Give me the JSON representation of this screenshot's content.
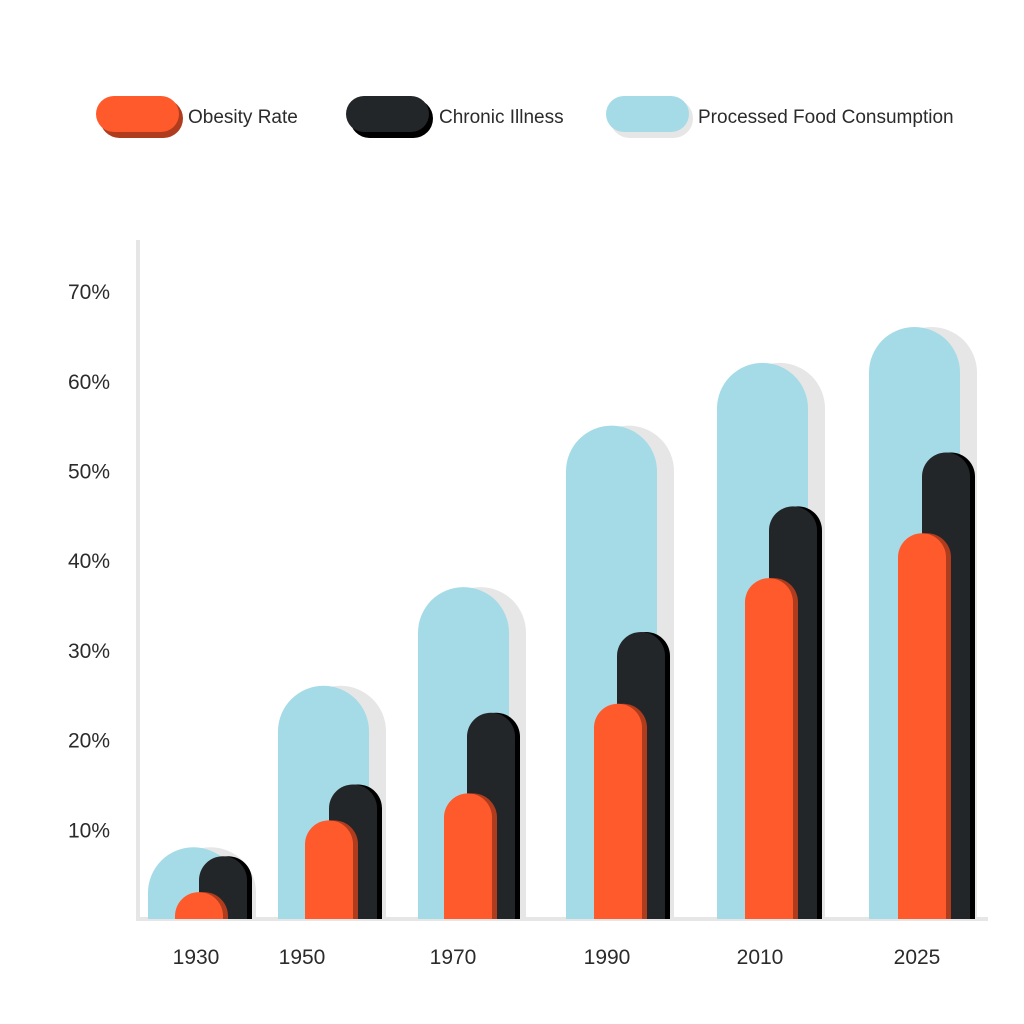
{
  "chart_data": {
    "type": "bar",
    "title": "",
    "xlabel": "",
    "ylabel": "",
    "categories": [
      "1930",
      "1950",
      "1970",
      "1990",
      "2010",
      "2025"
    ],
    "series": [
      {
        "name": "Obesity Rate",
        "values": [
          3,
          11,
          14,
          24,
          38,
          43
        ]
      },
      {
        "name": "Chronic Illness",
        "values": [
          7,
          15,
          23,
          32,
          46,
          52
        ]
      },
      {
        "name": "Processed Food Consumption",
        "values": [
          8,
          26,
          37,
          55,
          62,
          66
        ]
      }
    ],
    "ylim": [
      0,
      75
    ],
    "yticks": [
      "10%",
      "20%",
      "30%",
      "40%",
      "50%",
      "60%",
      "70%"
    ],
    "colors": {
      "Obesity Rate": "#ff5a2c",
      "Chronic Illness": "#232629",
      "Processed Food Consumption": "#a4dbe7",
      "shadow": "#e6e6e6"
    },
    "grid": false,
    "legend_position": "top-left"
  }
}
